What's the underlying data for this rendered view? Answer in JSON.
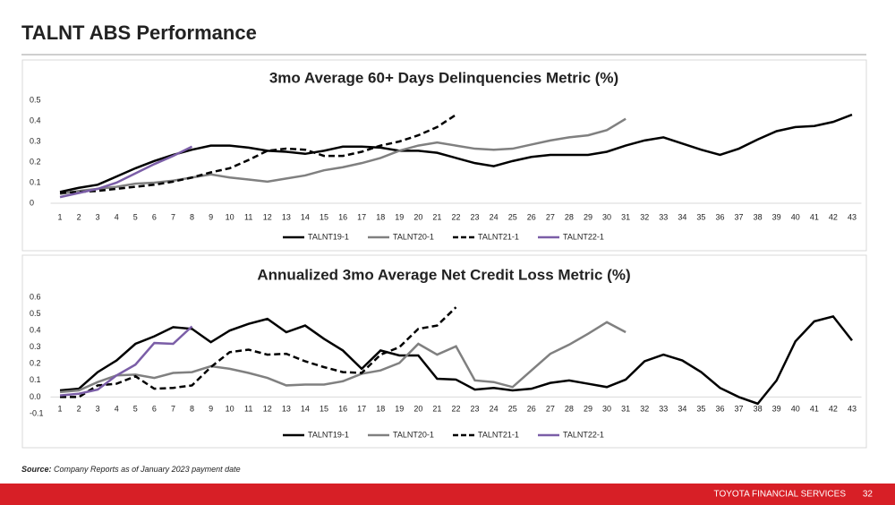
{
  "title": "TALNT ABS Performance",
  "chart_data": [
    {
      "type": "line",
      "title": "3mo Average 60+ Days Delinquencies Metric (%)",
      "categories": [
        1,
        2,
        3,
        4,
        5,
        6,
        7,
        8,
        9,
        10,
        11,
        12,
        13,
        14,
        15,
        16,
        17,
        18,
        19,
        20,
        21,
        22,
        23,
        24,
        25,
        26,
        27,
        28,
        29,
        30,
        31,
        32,
        33,
        34,
        35,
        36,
        37,
        38,
        39,
        40,
        41,
        42,
        43
      ],
      "ylim": [
        0,
        0.5
      ],
      "yticks": [
        0,
        0.1,
        0.2,
        0.3,
        0.4,
        0.5
      ],
      "legend": "bottom",
      "series": [
        {
          "name": "TALNT19-1",
          "color": "#000000",
          "line_style": "solid",
          "values": [
            0.055,
            0.075,
            0.09,
            0.13,
            0.17,
            0.205,
            0.235,
            0.26,
            0.28,
            0.28,
            0.27,
            0.255,
            0.25,
            0.24,
            0.255,
            0.275,
            0.275,
            0.27,
            0.255,
            0.255,
            0.245,
            0.22,
            0.195,
            0.18,
            0.205,
            0.225,
            0.235,
            0.235,
            0.235,
            0.25,
            0.28,
            0.305,
            0.32,
            0.29,
            0.26,
            0.235,
            0.265,
            0.31,
            0.35,
            0.37,
            0.375,
            0.395,
            0.43
          ]
        },
        {
          "name": "TALNT20-1",
          "color": "#808080",
          "line_style": "solid",
          "values": [
            0.045,
            0.06,
            0.07,
            0.08,
            0.095,
            0.1,
            0.11,
            0.125,
            0.14,
            0.125,
            0.115,
            0.105,
            0.12,
            0.135,
            0.16,
            0.175,
            0.195,
            0.22,
            0.255,
            0.28,
            0.295,
            0.28,
            0.265,
            0.26,
            0.265,
            0.285,
            0.305,
            0.32,
            0.33,
            0.355,
            0.41,
            null,
            null,
            null,
            null,
            null,
            null,
            null,
            null,
            null,
            null,
            null,
            null
          ]
        },
        {
          "name": "TALNT21-1",
          "color": "#000000",
          "line_style": "dashed",
          "values": [
            0.05,
            0.055,
            0.06,
            0.07,
            0.08,
            0.09,
            0.105,
            0.125,
            0.15,
            0.17,
            0.21,
            0.255,
            0.265,
            0.26,
            0.23,
            0.23,
            0.25,
            0.28,
            0.3,
            0.33,
            0.37,
            0.43,
            null,
            null,
            null,
            null,
            null,
            null,
            null,
            null,
            null,
            null,
            null,
            null,
            null,
            null,
            null,
            null,
            null,
            null,
            null,
            null,
            null
          ]
        },
        {
          "name": "TALNT22-1",
          "color": "#7b5ea7",
          "line_style": "solid",
          "values": [
            0.03,
            0.05,
            0.07,
            0.1,
            0.145,
            0.19,
            0.23,
            0.275,
            null,
            null,
            null,
            null,
            null,
            null,
            null,
            null,
            null,
            null,
            null,
            null,
            null,
            null,
            null,
            null,
            null,
            null,
            null,
            null,
            null,
            null,
            null,
            null,
            null,
            null,
            null,
            null,
            null,
            null,
            null,
            null,
            null,
            null,
            null
          ]
        }
      ]
    },
    {
      "type": "line",
      "title": "Annualized 3mo Average Net Credit Loss Metric (%)",
      "categories": [
        1,
        2,
        3,
        4,
        5,
        6,
        7,
        8,
        9,
        10,
        11,
        12,
        13,
        14,
        15,
        16,
        17,
        18,
        19,
        20,
        21,
        22,
        23,
        24,
        25,
        26,
        27,
        28,
        29,
        30,
        31,
        32,
        33,
        34,
        35,
        36,
        37,
        38,
        39,
        40,
        41,
        42,
        43
      ],
      "ylim": [
        -0.1,
        0.6
      ],
      "yticks": [
        -0.1,
        {
          "value": 0,
          "label": "0.0"
        },
        0.1,
        0.2,
        0.3,
        0.4,
        0.5,
        0.6
      ],
      "legend": "bottom",
      "series": [
        {
          "name": "TALNT19-1",
          "color": "#000000",
          "line_style": "solid",
          "values": [
            0.04,
            0.05,
            0.15,
            0.22,
            0.32,
            0.365,
            0.42,
            0.41,
            0.33,
            0.4,
            0.44,
            0.47,
            0.39,
            0.43,
            0.35,
            0.28,
            0.17,
            0.28,
            0.25,
            0.25,
            0.11,
            0.105,
            0.045,
            0.055,
            0.04,
            0.05,
            0.085,
            0.1,
            0.08,
            0.06,
            0.105,
            0.215,
            0.255,
            0.22,
            0.15,
            0.055,
            0.0,
            -0.04,
            0.1,
            0.335,
            0.455,
            0.485,
            0.34
          ]
        },
        {
          "name": "TALNT20-1",
          "color": "#808080",
          "line_style": "solid",
          "values": [
            0.03,
            0.04,
            0.09,
            0.13,
            0.135,
            0.115,
            0.145,
            0.15,
            0.185,
            0.17,
            0.145,
            0.115,
            0.07,
            0.075,
            0.075,
            0.095,
            0.14,
            0.16,
            0.205,
            0.32,
            0.255,
            0.305,
            0.1,
            0.09,
            0.06,
            0.16,
            0.26,
            0.315,
            0.38,
            0.45,
            0.39,
            null,
            null,
            null,
            null,
            null,
            null,
            null,
            null,
            null,
            null,
            null,
            null
          ]
        },
        {
          "name": "TALNT21-1",
          "color": "#000000",
          "line_style": "dashed",
          "values": [
            0.0,
            0.0,
            0.07,
            0.08,
            0.125,
            0.05,
            0.055,
            0.07,
            0.18,
            0.27,
            0.285,
            0.255,
            0.26,
            0.215,
            0.18,
            0.15,
            0.145,
            0.255,
            0.3,
            0.41,
            0.43,
            0.54,
            null,
            null,
            null,
            null,
            null,
            null,
            null,
            null,
            null,
            null,
            null,
            null,
            null,
            null,
            null,
            null,
            null,
            null,
            null,
            null,
            null
          ]
        },
        {
          "name": "TALNT22-1",
          "color": "#7b5ea7",
          "line_style": "solid",
          "values": [
            0.01,
            0.02,
            0.045,
            0.13,
            0.195,
            0.325,
            0.32,
            0.425,
            null,
            null,
            null,
            null,
            null,
            null,
            null,
            null,
            null,
            null,
            null,
            null,
            null,
            null,
            null,
            null,
            null,
            null,
            null,
            null,
            null,
            null,
            null,
            null,
            null,
            null,
            null,
            null,
            null,
            null,
            null,
            null,
            null,
            null,
            null
          ]
        }
      ]
    }
  ],
  "source": {
    "label": "Source:",
    "text": "Company Reports as of January 2023 payment date"
  },
  "footer": {
    "company": "TOYOTA FINANCIAL SERVICES",
    "page": "32"
  }
}
